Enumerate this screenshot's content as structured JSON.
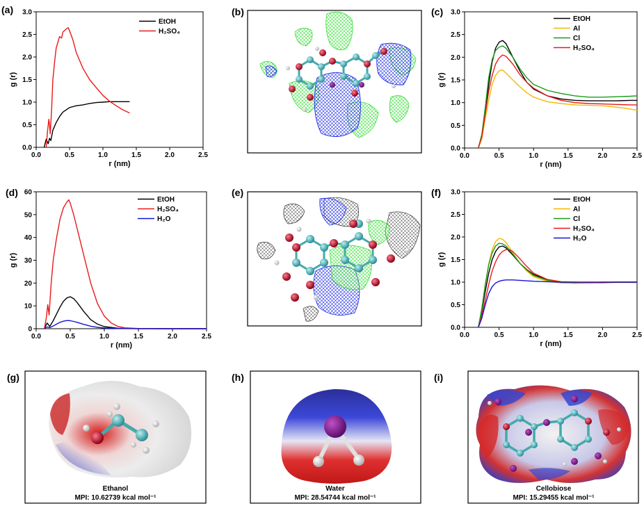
{
  "panels": {
    "a": "(a)",
    "b": "(b)",
    "c": "(c)",
    "d": "(d)",
    "e": "(e)",
    "f": "(f)",
    "g": "(g)",
    "h": "(h)",
    "i": "(i)"
  },
  "colors": {
    "EtOH": "#000000",
    "H2SO4": "#e8191c",
    "Al": "#f5b800",
    "Cl": "#1a9a1a",
    "H2O": "#1515d0",
    "mesh_green": "#33dd33",
    "mesh_blue": "#1a28e0",
    "mesh_black": "#333333",
    "atom_carbon": "#3aa6b0",
    "atom_oxygen": "#c0102a",
    "atom_hydrogen": "#e8e8e8"
  },
  "chart_data": [
    {
      "panel": "(a)",
      "type": "line",
      "xlabel": "r (nm)",
      "ylabel": "g (r)",
      "xlim": [
        0,
        2.5
      ],
      "ylim": [
        0,
        3.0
      ],
      "xticks": [
        "0.0",
        "0.5",
        "1.0",
        "1.5",
        "2.0",
        "2.5"
      ],
      "yticks": [
        "0.0",
        "0.5",
        "1.0",
        "1.5",
        "2.0",
        "2.5",
        "3.0"
      ],
      "legend": [
        "EtOH",
        "H₂SO₄"
      ],
      "series": [
        {
          "name": "EtOH",
          "color": "#000000",
          "x": [
            0.12,
            0.15,
            0.18,
            0.2,
            0.22,
            0.25,
            0.3,
            0.35,
            0.4,
            0.45,
            0.5,
            0.55,
            0.6,
            0.7,
            0.8,
            0.9,
            1.0,
            1.1,
            1.2,
            1.3,
            1.4
          ],
          "y": [
            0.0,
            0.18,
            0.08,
            0.2,
            0.15,
            0.38,
            0.55,
            0.68,
            0.78,
            0.83,
            0.88,
            0.9,
            0.92,
            0.94,
            0.97,
            0.99,
            1.0,
            1.01,
            1.01,
            1.01,
            1.01
          ]
        },
        {
          "name": "H₂SO₄",
          "color": "#e8191c",
          "x": [
            0.15,
            0.17,
            0.19,
            0.2,
            0.21,
            0.23,
            0.25,
            0.28,
            0.3,
            0.33,
            0.35,
            0.38,
            0.4,
            0.45,
            0.48,
            0.5,
            0.55,
            0.6,
            0.7,
            0.8,
            0.9,
            1.0,
            1.1,
            1.2,
            1.3,
            1.4
          ],
          "y": [
            0.0,
            0.35,
            0.62,
            0.5,
            0.3,
            0.8,
            1.5,
            1.95,
            2.2,
            2.35,
            2.45,
            2.42,
            2.55,
            2.62,
            2.65,
            2.58,
            2.38,
            2.1,
            1.75,
            1.5,
            1.32,
            1.15,
            1.02,
            0.92,
            0.83,
            0.76
          ]
        }
      ]
    },
    {
      "panel": "(c)",
      "type": "line",
      "xlabel": "r (nm)",
      "ylabel": "g (r)",
      "xlim": [
        0,
        2.5
      ],
      "ylim": [
        0,
        3.0
      ],
      "xticks": [
        "0.0",
        "0.5",
        "1.0",
        "1.5",
        "2.0",
        "2.5"
      ],
      "yticks": [
        "0.0",
        "0.5",
        "1.0",
        "1.5",
        "2.0",
        "2.5",
        "3.0"
      ],
      "legend": [
        "EtOH",
        "Al",
        "Cl",
        "H₂SO₄"
      ],
      "series": [
        {
          "name": "EtOH",
          "color": "#000000",
          "x": [
            0.2,
            0.25,
            0.3,
            0.35,
            0.4,
            0.45,
            0.5,
            0.55,
            0.6,
            0.7,
            0.8,
            0.9,
            1.0,
            1.2,
            1.4,
            1.6,
            1.8,
            2.0,
            2.2,
            2.4,
            2.5
          ],
          "y": [
            0.0,
            0.25,
            0.8,
            1.4,
            1.9,
            2.2,
            2.33,
            2.37,
            2.3,
            2.0,
            1.7,
            1.45,
            1.3,
            1.15,
            1.08,
            1.05,
            1.04,
            1.04,
            1.04,
            1.05,
            1.05
          ]
        },
        {
          "name": "Al",
          "color": "#f5b800",
          "x": [
            0.2,
            0.25,
            0.3,
            0.35,
            0.4,
            0.45,
            0.5,
            0.55,
            0.6,
            0.7,
            0.8,
            0.9,
            1.0,
            1.2,
            1.4,
            1.6,
            1.8,
            2.0,
            2.2,
            2.4,
            2.5
          ],
          "y": [
            0.0,
            0.2,
            0.65,
            1.05,
            1.4,
            1.6,
            1.7,
            1.72,
            1.65,
            1.5,
            1.35,
            1.22,
            1.12,
            1.02,
            0.98,
            0.95,
            0.94,
            0.93,
            0.9,
            0.86,
            0.83
          ]
        },
        {
          "name": "Cl",
          "color": "#1a9a1a",
          "x": [
            0.2,
            0.25,
            0.3,
            0.35,
            0.4,
            0.45,
            0.5,
            0.55,
            0.6,
            0.7,
            0.8,
            0.9,
            1.0,
            1.2,
            1.4,
            1.6,
            1.8,
            2.0,
            2.2,
            2.4,
            2.5
          ],
          "y": [
            0.0,
            0.3,
            0.9,
            1.55,
            1.95,
            2.15,
            2.22,
            2.25,
            2.2,
            2.0,
            1.75,
            1.55,
            1.4,
            1.27,
            1.2,
            1.15,
            1.12,
            1.12,
            1.13,
            1.14,
            1.15
          ]
        },
        {
          "name": "H₂SO₄",
          "color": "#e8191c",
          "x": [
            0.2,
            0.25,
            0.3,
            0.35,
            0.4,
            0.45,
            0.5,
            0.55,
            0.6,
            0.7,
            0.8,
            0.9,
            1.0,
            1.2,
            1.4,
            1.6,
            1.8,
            2.0,
            2.2,
            2.4,
            2.5
          ],
          "y": [
            0.0,
            0.25,
            0.75,
            1.25,
            1.6,
            1.85,
            1.98,
            2.05,
            2.02,
            1.85,
            1.62,
            1.45,
            1.32,
            1.15,
            1.05,
            1.0,
            0.98,
            0.97,
            0.96,
            0.95,
            0.95
          ]
        }
      ]
    },
    {
      "panel": "(d)",
      "type": "line",
      "xlabel": "r (nm)",
      "ylabel": "g (r)",
      "xlim": [
        0,
        2.5
      ],
      "ylim": [
        0,
        60
      ],
      "xticks": [
        "0.0",
        "0.5",
        "1.0",
        "1.5",
        "2.0",
        "2.5"
      ],
      "yticks": [
        "0",
        "10",
        "20",
        "30",
        "40",
        "50",
        "60"
      ],
      "legend": [
        "EtOH",
        "H₂SO₄",
        "H₂O"
      ],
      "series": [
        {
          "name": "EtOH",
          "color": "#000000",
          "x": [
            0.12,
            0.16,
            0.2,
            0.25,
            0.3,
            0.35,
            0.4,
            0.45,
            0.5,
            0.55,
            0.6,
            0.7,
            0.8,
            0.9,
            1.0,
            1.2,
            1.5,
            2.0,
            2.5
          ],
          "y": [
            0.0,
            2.5,
            1.0,
            3.5,
            6.5,
            9.5,
            12.0,
            13.5,
            14.0,
            13.2,
            11.5,
            7.5,
            4.0,
            2.0,
            0.9,
            0.2,
            0.05,
            0.0,
            0.0
          ]
        },
        {
          "name": "H₂SO₄",
          "color": "#e8191c",
          "x": [
            0.12,
            0.15,
            0.17,
            0.19,
            0.22,
            0.25,
            0.3,
            0.35,
            0.4,
            0.45,
            0.48,
            0.5,
            0.55,
            0.6,
            0.7,
            0.8,
            0.9,
            1.0,
            1.1,
            1.2,
            1.3,
            1.5,
            2.0,
            2.5
          ],
          "y": [
            0.0,
            5.0,
            10.5,
            6.0,
            20.0,
            30.0,
            40.0,
            48.0,
            53.0,
            55.5,
            56.5,
            55.0,
            50.0,
            44.0,
            32.0,
            20.0,
            11.0,
            5.5,
            2.5,
            1.0,
            0.4,
            0.1,
            0.0,
            0.0
          ]
        },
        {
          "name": "H₂O",
          "color": "#1515d0",
          "x": [
            0.12,
            0.16,
            0.2,
            0.25,
            0.3,
            0.35,
            0.4,
            0.45,
            0.5,
            0.55,
            0.6,
            0.7,
            0.8,
            0.9,
            1.0,
            1.2,
            1.5,
            2.0,
            2.5
          ],
          "y": [
            0.0,
            0.8,
            0.5,
            1.2,
            2.0,
            2.8,
            3.3,
            3.6,
            3.5,
            3.2,
            2.8,
            1.9,
            1.1,
            0.6,
            0.3,
            0.1,
            0.0,
            0.0,
            0.0
          ]
        }
      ]
    },
    {
      "panel": "(f)",
      "type": "line",
      "xlabel": "r (nm)",
      "ylabel": "g (r)",
      "xlim": [
        0,
        2.5
      ],
      "ylim": [
        0,
        3.0
      ],
      "xticks": [
        "0.0",
        "0.5",
        "1.0",
        "1.5",
        "2.0",
        "2.5"
      ],
      "yticks": [
        "0.0",
        "0.5",
        "1.0",
        "1.5",
        "2.0",
        "2.5",
        "3.0"
      ],
      "legend": [
        "EtOH",
        "Al",
        "Cl",
        "H₂SO₄",
        "H₂O"
      ],
      "series": [
        {
          "name": "EtOH",
          "color": "#000000",
          "x": [
            0.2,
            0.25,
            0.3,
            0.35,
            0.4,
            0.45,
            0.5,
            0.55,
            0.6,
            0.7,
            0.8,
            0.9,
            1.0,
            1.2,
            1.4,
            1.6,
            1.8,
            2.0,
            2.2,
            2.5
          ],
          "y": [
            0.0,
            0.35,
            0.8,
            1.2,
            1.5,
            1.68,
            1.78,
            1.8,
            1.76,
            1.6,
            1.42,
            1.28,
            1.17,
            1.05,
            1.0,
            0.99,
            0.99,
            0.99,
            1.0,
            1.0
          ]
        },
        {
          "name": "Al",
          "color": "#f5b800",
          "x": [
            0.2,
            0.25,
            0.3,
            0.35,
            0.4,
            0.45,
            0.5,
            0.55,
            0.6,
            0.7,
            0.8,
            0.9,
            1.0,
            1.2,
            1.4,
            1.6,
            1.8,
            2.0,
            2.2,
            2.5
          ],
          "y": [
            0.0,
            0.4,
            0.95,
            1.4,
            1.72,
            1.9,
            1.97,
            1.95,
            1.88,
            1.65,
            1.42,
            1.25,
            1.12,
            1.02,
            0.98,
            0.97,
            0.98,
            0.98,
            0.99,
            0.99
          ]
        },
        {
          "name": "Cl",
          "color": "#1a9a1a",
          "x": [
            0.2,
            0.25,
            0.3,
            0.35,
            0.4,
            0.45,
            0.5,
            0.55,
            0.6,
            0.7,
            0.8,
            0.9,
            1.0,
            1.2,
            1.4,
            1.6,
            1.8,
            2.0,
            2.2,
            2.5
          ],
          "y": [
            0.0,
            0.42,
            0.95,
            1.38,
            1.65,
            1.8,
            1.86,
            1.85,
            1.8,
            1.62,
            1.42,
            1.27,
            1.15,
            1.04,
            1.0,
            0.99,
            0.99,
            1.0,
            1.0,
            1.0
          ]
        },
        {
          "name": "H₂SO₄",
          "color": "#e8191c",
          "x": [
            0.2,
            0.25,
            0.3,
            0.35,
            0.4,
            0.45,
            0.5,
            0.55,
            0.6,
            0.65,
            0.7,
            0.8,
            0.9,
            1.0,
            1.2,
            1.4,
            1.6,
            1.8,
            2.0,
            2.2,
            2.5
          ],
          "y": [
            0.0,
            0.25,
            0.6,
            0.95,
            1.25,
            1.45,
            1.6,
            1.68,
            1.72,
            1.72,
            1.68,
            1.52,
            1.35,
            1.2,
            1.06,
            1.01,
            1.0,
            0.99,
            0.99,
            1.0,
            1.0
          ]
        },
        {
          "name": "H₂O",
          "color": "#1515d0",
          "x": [
            0.2,
            0.25,
            0.3,
            0.35,
            0.4,
            0.45,
            0.5,
            0.55,
            0.6,
            0.7,
            0.8,
            0.9,
            1.0,
            1.2,
            1.4,
            1.6,
            1.8,
            2.0,
            2.2,
            2.5
          ],
          "y": [
            0.0,
            0.2,
            0.5,
            0.75,
            0.9,
            0.98,
            1.02,
            1.04,
            1.05,
            1.05,
            1.04,
            1.03,
            1.02,
            1.01,
            1.0,
            1.0,
            1.0,
            1.0,
            1.0,
            1.0
          ]
        }
      ]
    }
  ],
  "images": {
    "g": {
      "name": "Ethanol",
      "mpi": "MPI: 10.62739 kcal mol⁻¹"
    },
    "h": {
      "name": "Water",
      "mpi": "MPI: 28.54744 kcal mol⁻¹"
    },
    "i": {
      "name": "Cellobiose",
      "mpi": "MPI: 15.29455 kcal mol⁻¹"
    }
  }
}
